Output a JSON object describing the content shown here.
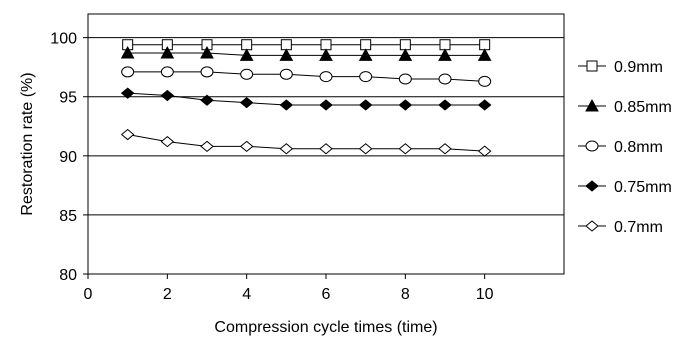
{
  "chart_data": {
    "type": "line",
    "xlabel": "Compression cycle times (time)",
    "ylabel": "Restoration rate (%)",
    "xlim": [
      0,
      12
    ],
    "ylim": [
      80,
      102
    ],
    "xticks": [
      0,
      2,
      4,
      6,
      8,
      10
    ],
    "yticks": [
      80,
      85,
      90,
      95,
      100
    ],
    "grid": "horizontal",
    "legend_position": "right",
    "x": [
      1,
      2,
      3,
      4,
      5,
      6,
      7,
      8,
      9,
      10
    ],
    "series": [
      {
        "name": "0.9mm",
        "marker": "square-open",
        "values": [
          99.4,
          99.4,
          99.4,
          99.4,
          99.4,
          99.4,
          99.4,
          99.4,
          99.4,
          99.4
        ]
      },
      {
        "name": "0.85mm",
        "marker": "triangle-filled",
        "values": [
          98.7,
          98.7,
          98.7,
          98.5,
          98.5,
          98.5,
          98.5,
          98.5,
          98.5,
          98.5
        ]
      },
      {
        "name": "0.8mm",
        "marker": "circle-open",
        "values": [
          97.1,
          97.1,
          97.1,
          96.9,
          96.9,
          96.7,
          96.7,
          96.5,
          96.5,
          96.3
        ]
      },
      {
        "name": "0.75mm",
        "marker": "diamond-filled",
        "values": [
          95.3,
          95.1,
          94.7,
          94.5,
          94.3,
          94.3,
          94.3,
          94.3,
          94.3,
          94.3
        ]
      },
      {
        "name": "0.7mm",
        "marker": "diamond-open",
        "values": [
          91.8,
          91.2,
          90.8,
          90.8,
          90.6,
          90.6,
          90.6,
          90.6,
          90.6,
          90.4
        ]
      }
    ]
  }
}
